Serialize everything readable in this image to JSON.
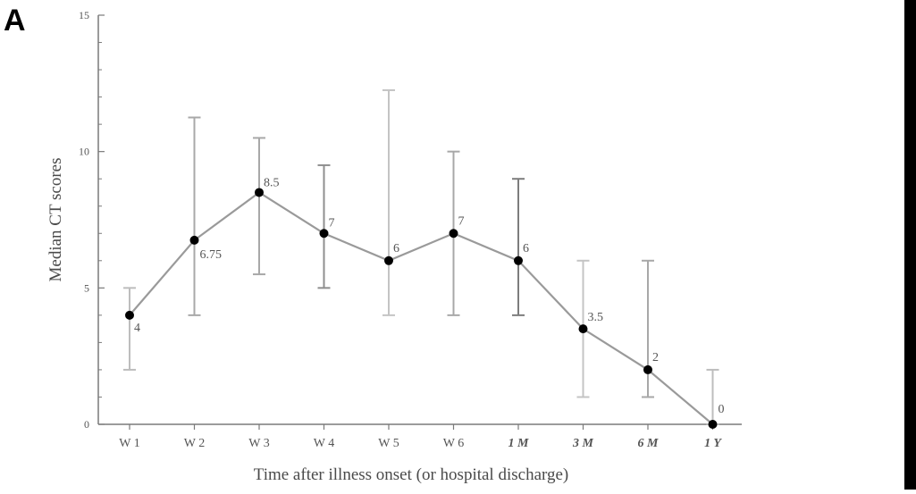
{
  "panel_label": "A",
  "chart_data": {
    "type": "line",
    "title": "",
    "xlabel": "Time after illness onset (or hospital discharge)",
    "ylabel": "Median CT scores",
    "ylim": [
      0,
      15
    ],
    "yticks": [
      0,
      5,
      10,
      15
    ],
    "grid": false,
    "categories": [
      "W 1",
      "W 2",
      "W 3",
      "W 4",
      "W 5",
      "W 6",
      "1 M",
      "3 M",
      "6 M",
      "1 Y"
    ],
    "italic_categories": [
      "1 M",
      "3 M",
      "6 M",
      "1 Y"
    ],
    "values": [
      4,
      6.75,
      8.5,
      7,
      6,
      7,
      6,
      3.5,
      2,
      0
    ],
    "value_labels": [
      "4",
      "6.75",
      "8.5",
      "7",
      "6",
      "7",
      "6",
      "3.5",
      "2",
      "0"
    ],
    "error_low": [
      2,
      4,
      5.5,
      5,
      4,
      4,
      4,
      1,
      1,
      0
    ],
    "error_high": [
      5,
      11.25,
      10.5,
      9.5,
      12.25,
      10,
      9,
      6,
      6,
      2
    ],
    "colors": {
      "line": "#9a9a9a",
      "marker": "#000000",
      "axis": "#7a7a7a",
      "text": "#555555"
    }
  }
}
